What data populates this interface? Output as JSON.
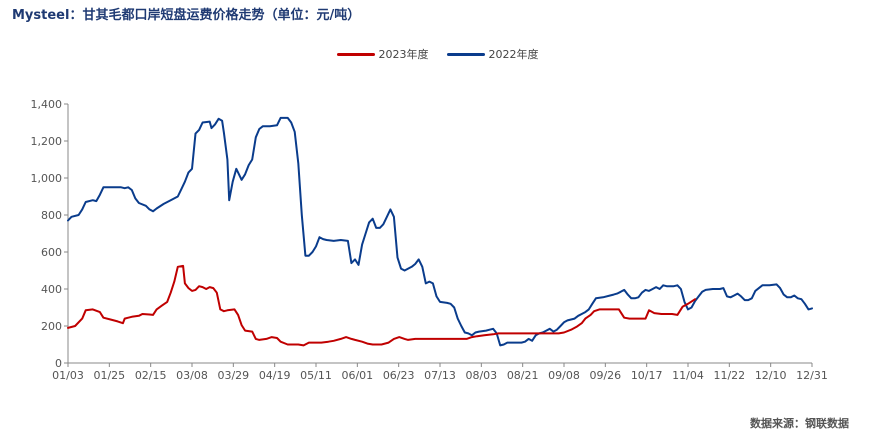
{
  "title": "Mysteel：甘其毛都口岸短盘运费价格走势（单位：元/吨）",
  "source": "数据来源：钢联数据",
  "chart_data": {
    "type": "line",
    "x_ticks": [
      "01/03",
      "01/25",
      "02/15",
      "03/08",
      "03/29",
      "04/19",
      "05/11",
      "06/01",
      "06/23",
      "07/13",
      "08/03",
      "08/21",
      "09/08",
      "09/26",
      "10/17",
      "11/04",
      "11/22",
      "12/10",
      "12/31"
    ],
    "ylim": [
      0,
      1400
    ],
    "y_ticks": [
      0,
      200,
      400,
      600,
      800,
      1000,
      1200,
      1400
    ],
    "y_tick_labels": [
      "0",
      "200",
      "400",
      "600",
      "800",
      "1,000",
      "1,200",
      "1,400"
    ],
    "legend_position": "top-center",
    "grid": false,
    "series": [
      {
        "name": "2023年度",
        "color": "#c00000",
        "points": [
          [
            0,
            190
          ],
          [
            4,
            200
          ],
          [
            8,
            240
          ],
          [
            10,
            285
          ],
          [
            14,
            290
          ],
          [
            18,
            275
          ],
          [
            20,
            245
          ],
          [
            24,
            235
          ],
          [
            28,
            225
          ],
          [
            31,
            215
          ],
          [
            32,
            240
          ],
          [
            36,
            250
          ],
          [
            40,
            255
          ],
          [
            42,
            265
          ],
          [
            46,
            262
          ],
          [
            48,
            260
          ],
          [
            50,
            290
          ],
          [
            53,
            310
          ],
          [
            56,
            330
          ],
          [
            58,
            380
          ],
          [
            60,
            440
          ],
          [
            62,
            520
          ],
          [
            65,
            525
          ],
          [
            66,
            430
          ],
          [
            68,
            405
          ],
          [
            70,
            390
          ],
          [
            72,
            395
          ],
          [
            74,
            415
          ],
          [
            76,
            410
          ],
          [
            78,
            400
          ],
          [
            80,
            410
          ],
          [
            82,
            405
          ],
          [
            84,
            380
          ],
          [
            86,
            290
          ],
          [
            88,
            280
          ],
          [
            90,
            285
          ],
          [
            94,
            290
          ],
          [
            96,
            260
          ],
          [
            98,
            205
          ],
          [
            100,
            175
          ],
          [
            104,
            170
          ],
          [
            106,
            130
          ],
          [
            108,
            125
          ],
          [
            112,
            130
          ],
          [
            115,
            140
          ],
          [
            118,
            135
          ],
          [
            120,
            115
          ],
          [
            124,
            100
          ],
          [
            127,
            100
          ],
          [
            130,
            100
          ],
          [
            133,
            95
          ],
          [
            136,
            110
          ],
          [
            139,
            110
          ],
          [
            143,
            110
          ],
          [
            147,
            115
          ],
          [
            150,
            120
          ],
          [
            154,
            130
          ],
          [
            157,
            140
          ],
          [
            160,
            130
          ],
          [
            162,
            125
          ],
          [
            166,
            115
          ],
          [
            169,
            105
          ],
          [
            172,
            100
          ],
          [
            175,
            100
          ],
          [
            177,
            100
          ],
          [
            181,
            110
          ],
          [
            184,
            130
          ],
          [
            187,
            140
          ],
          [
            190,
            130
          ],
          [
            192,
            125
          ],
          [
            196,
            130
          ],
          [
            200,
            130
          ],
          [
            205,
            130
          ],
          [
            210,
            130
          ],
          [
            215,
            130
          ],
          [
            220,
            130
          ],
          [
            225,
            130
          ],
          [
            228,
            140
          ],
          [
            231,
            145
          ],
          [
            235,
            150
          ],
          [
            240,
            155
          ],
          [
            243,
            160
          ],
          [
            247,
            160
          ],
          [
            252,
            160
          ],
          [
            257,
            160
          ],
          [
            262,
            160
          ],
          [
            267,
            160
          ],
          [
            272,
            160
          ],
          [
            277,
            160
          ],
          [
            280,
            165
          ],
          [
            284,
            180
          ],
          [
            287,
            195
          ],
          [
            290,
            215
          ],
          [
            292,
            240
          ],
          [
            295,
            260
          ],
          [
            297,
            280
          ],
          [
            300,
            290
          ],
          [
            304,
            290
          ],
          [
            307,
            290
          ],
          [
            311,
            290
          ],
          [
            314,
            245
          ],
          [
            317,
            240
          ],
          [
            320,
            240
          ],
          [
            323,
            240
          ],
          [
            326,
            240
          ],
          [
            328,
            285
          ],
          [
            331,
            270
          ],
          [
            335,
            265
          ],
          [
            338,
            265
          ],
          [
            341,
            265
          ],
          [
            344,
            260
          ],
          [
            347,
            305
          ],
          [
            350,
            320
          ],
          [
            354,
            345
          ]
        ]
      },
      {
        "name": "2022年度",
        "color": "#0a3c8c",
        "points": [
          [
            0,
            770
          ],
          [
            2,
            790
          ],
          [
            6,
            800
          ],
          [
            8,
            830
          ],
          [
            10,
            870
          ],
          [
            14,
            880
          ],
          [
            16,
            875
          ],
          [
            18,
            910
          ],
          [
            20,
            950
          ],
          [
            26,
            950
          ],
          [
            30,
            950
          ],
          [
            32,
            945
          ],
          [
            34,
            950
          ],
          [
            36,
            935
          ],
          [
            38,
            890
          ],
          [
            40,
            865
          ],
          [
            44,
            850
          ],
          [
            46,
            830
          ],
          [
            48,
            820
          ],
          [
            50,
            835
          ],
          [
            54,
            860
          ],
          [
            58,
            880
          ],
          [
            62,
            900
          ],
          [
            64,
            940
          ],
          [
            66,
            980
          ],
          [
            68,
            1030
          ],
          [
            70,
            1050
          ],
          [
            72,
            1240
          ],
          [
            74,
            1260
          ],
          [
            76,
            1300
          ],
          [
            80,
            1305
          ],
          [
            81,
            1270
          ],
          [
            83,
            1290
          ],
          [
            85,
            1320
          ],
          [
            87,
            1310
          ],
          [
            88,
            1245
          ],
          [
            90,
            1100
          ],
          [
            91,
            880
          ],
          [
            93,
            980
          ],
          [
            95,
            1050
          ],
          [
            98,
            990
          ],
          [
            100,
            1020
          ],
          [
            102,
            1070
          ],
          [
            104,
            1100
          ],
          [
            106,
            1220
          ],
          [
            108,
            1265
          ],
          [
            110,
            1280
          ],
          [
            114,
            1280
          ],
          [
            118,
            1285
          ],
          [
            120,
            1325
          ],
          [
            124,
            1325
          ],
          [
            126,
            1300
          ],
          [
            128,
            1250
          ],
          [
            130,
            1080
          ],
          [
            132,
            800
          ],
          [
            134,
            580
          ],
          [
            136,
            580
          ],
          [
            138,
            600
          ],
          [
            140,
            630
          ],
          [
            142,
            680
          ],
          [
            144,
            670
          ],
          [
            146,
            665
          ],
          [
            150,
            660
          ],
          [
            154,
            665
          ],
          [
            158,
            660
          ],
          [
            160,
            540
          ],
          [
            162,
            560
          ],
          [
            164,
            530
          ],
          [
            166,
            640
          ],
          [
            168,
            700
          ],
          [
            170,
            760
          ],
          [
            172,
            780
          ],
          [
            174,
            730
          ],
          [
            176,
            730
          ],
          [
            178,
            750
          ],
          [
            180,
            790
          ],
          [
            182,
            830
          ],
          [
            184,
            790
          ],
          [
            186,
            570
          ],
          [
            188,
            510
          ],
          [
            190,
            500
          ],
          [
            194,
            520
          ],
          [
            196,
            535
          ],
          [
            198,
            560
          ],
          [
            200,
            520
          ],
          [
            202,
            430
          ],
          [
            204,
            440
          ],
          [
            206,
            430
          ],
          [
            208,
            360
          ],
          [
            210,
            330
          ],
          [
            214,
            325
          ],
          [
            216,
            320
          ],
          [
            218,
            300
          ],
          [
            220,
            240
          ],
          [
            222,
            200
          ],
          [
            224,
            165
          ],
          [
            226,
            160
          ],
          [
            228,
            150
          ],
          [
            230,
            165
          ],
          [
            232,
            170
          ],
          [
            236,
            175
          ],
          [
            238,
            180
          ],
          [
            240,
            185
          ],
          [
            242,
            160
          ],
          [
            244,
            95
          ],
          [
            246,
            100
          ],
          [
            248,
            110
          ],
          [
            252,
            110
          ],
          [
            256,
            110
          ],
          [
            258,
            115
          ],
          [
            260,
            130
          ],
          [
            262,
            120
          ],
          [
            264,
            150
          ],
          [
            266,
            160
          ],
          [
            268,
            165
          ],
          [
            270,
            175
          ],
          [
            272,
            185
          ],
          [
            274,
            170
          ],
          [
            276,
            180
          ],
          [
            278,
            200
          ],
          [
            280,
            220
          ],
          [
            282,
            230
          ],
          [
            286,
            240
          ],
          [
            288,
            255
          ],
          [
            290,
            265
          ],
          [
            292,
            275
          ],
          [
            294,
            290
          ],
          [
            296,
            320
          ],
          [
            298,
            350
          ],
          [
            302,
            355
          ],
          [
            306,
            365
          ],
          [
            308,
            370
          ],
          [
            310,
            375
          ],
          [
            312,
            385
          ],
          [
            314,
            395
          ],
          [
            316,
            370
          ],
          [
            318,
            350
          ],
          [
            320,
            350
          ],
          [
            322,
            355
          ],
          [
            324,
            380
          ],
          [
            326,
            395
          ],
          [
            328,
            390
          ],
          [
            330,
            400
          ],
          [
            332,
            410
          ],
          [
            334,
            400
          ],
          [
            336,
            420
          ],
          [
            338,
            415
          ],
          [
            340,
            415
          ],
          [
            342,
            415
          ],
          [
            344,
            420
          ],
          [
            346,
            400
          ],
          [
            348,
            330
          ],
          [
            350,
            290
          ],
          [
            352,
            300
          ],
          [
            354,
            335
          ],
          [
            356,
            360
          ],
          [
            358,
            385
          ],
          [
            360,
            395
          ],
          [
            364,
            400
          ],
          [
            368,
            400
          ],
          [
            370,
            405
          ],
          [
            372,
            360
          ],
          [
            374,
            355
          ],
          [
            376,
            365
          ],
          [
            378,
            375
          ],
          [
            380,
            360
          ],
          [
            382,
            340
          ],
          [
            384,
            340
          ],
          [
            386,
            350
          ],
          [
            388,
            390
          ],
          [
            390,
            405
          ],
          [
            392,
            420
          ],
          [
            396,
            420
          ],
          [
            400,
            425
          ],
          [
            402,
            405
          ],
          [
            404,
            370
          ],
          [
            406,
            355
          ],
          [
            408,
            355
          ],
          [
            410,
            365
          ],
          [
            412,
            350
          ],
          [
            414,
            345
          ],
          [
            416,
            320
          ],
          [
            418,
            290
          ],
          [
            420,
            295
          ]
        ]
      }
    ]
  }
}
